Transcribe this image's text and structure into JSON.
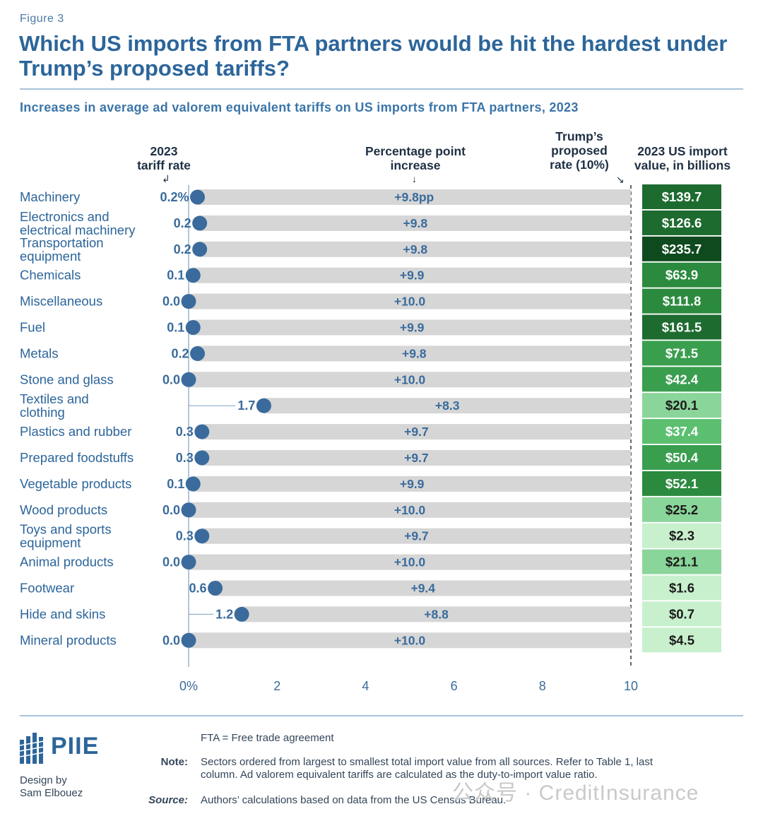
{
  "figure_label": "Figure 3",
  "title": "Which US imports from FTA partners would be hit the hardest under Trump’s proposed tariffs?",
  "subtitle": "Increases in average ad valorem equivalent tariffs on US imports from FTA partners, 2023",
  "headers": {
    "tariff_rate_line1": "2023",
    "tariff_rate_line2": "tariff rate",
    "increase_line1": "Percentage point",
    "increase_line2": "increase",
    "proposed_line1": "Trump’s",
    "proposed_line2": "proposed",
    "proposed_line3": "rate (10%)",
    "import_line1": "2023 US import",
    "import_line2": "value, in billions"
  },
  "colors": {
    "bar": "#d6d6d6",
    "dot": "#3a6b9c",
    "label": "#2c659a",
    "import_scale": [
      "#c8f0cd",
      "#8ad59a",
      "#5cbf70",
      "#3a9e4f",
      "#2b8a3e",
      "#1e6b30",
      "#0f4a1e"
    ]
  },
  "chart_data": {
    "type": "bar",
    "x_axis": {
      "ticks": [
        "0%",
        "2",
        "4",
        "6",
        "8",
        "10"
      ],
      "range": [
        0,
        10
      ]
    },
    "proposed_rate": 10,
    "categories": [
      {
        "name": "Machinery",
        "lines": [
          "Machinery"
        ],
        "rate": 0.2,
        "rate_label": "0.2%",
        "increase_label": "+9.8pp",
        "import_label": "$139.7",
        "import_value": 139.7,
        "shade": 5
      },
      {
        "name": "Electronics and electrical machinery",
        "lines": [
          "Electronics and",
          "electrical machinery"
        ],
        "rate": 0.25,
        "rate_label": "0.2",
        "increase_label": "+9.8",
        "import_label": "$126.6",
        "import_value": 126.6,
        "shade": 5
      },
      {
        "name": "Transportation equipment",
        "lines": [
          "Transportation",
          "equipment"
        ],
        "rate": 0.25,
        "rate_label": "0.2",
        "increase_label": "+9.8",
        "import_label": "$235.7",
        "import_value": 235.7,
        "shade": 6
      },
      {
        "name": "Chemicals",
        "lines": [
          "Chemicals"
        ],
        "rate": 0.1,
        "rate_label": "0.1",
        "increase_label": "+9.9",
        "import_label": "$63.9",
        "import_value": 63.9,
        "shade": 4
      },
      {
        "name": "Miscellaneous",
        "lines": [
          "Miscellaneous"
        ],
        "rate": 0.0,
        "rate_label": "0.0",
        "increase_label": "+10.0",
        "import_label": "$111.8",
        "import_value": 111.8,
        "shade": 4
      },
      {
        "name": "Fuel",
        "lines": [
          "Fuel"
        ],
        "rate": 0.1,
        "rate_label": "0.1",
        "increase_label": "+9.9",
        "import_label": "$161.5",
        "import_value": 161.5,
        "shade": 5
      },
      {
        "name": "Metals",
        "lines": [
          "Metals"
        ],
        "rate": 0.2,
        "rate_label": "0.2",
        "increase_label": "+9.8",
        "import_label": "$71.5",
        "import_value": 71.5,
        "shade": 3
      },
      {
        "name": "Stone and glass",
        "lines": [
          "Stone and glass"
        ],
        "rate": 0.0,
        "rate_label": "0.0",
        "increase_label": "+10.0",
        "import_label": "$42.4",
        "import_value": 42.4,
        "shade": 3
      },
      {
        "name": "Textiles and clothing",
        "lines": [
          "Textiles and",
          "clothing"
        ],
        "rate": 1.7,
        "rate_label": "1.7",
        "increase_label": "+8.3",
        "import_label": "$20.1",
        "import_value": 20.1,
        "shade": 1
      },
      {
        "name": "Plastics and rubber",
        "lines": [
          "Plastics and rubber"
        ],
        "rate": 0.3,
        "rate_label": "0.3",
        "increase_label": "+9.7",
        "import_label": "$37.4",
        "import_value": 37.4,
        "shade": 2
      },
      {
        "name": "Prepared foodstuffs",
        "lines": [
          "Prepared foodstuffs"
        ],
        "rate": 0.3,
        "rate_label": "0.3",
        "increase_label": "+9.7",
        "import_label": "$50.4",
        "import_value": 50.4,
        "shade": 3
      },
      {
        "name": "Vegetable products",
        "lines": [
          "Vegetable products"
        ],
        "rate": 0.1,
        "rate_label": "0.1",
        "increase_label": "+9.9",
        "import_label": "$52.1",
        "import_value": 52.1,
        "shade": 4
      },
      {
        "name": "Wood products",
        "lines": [
          "Wood products"
        ],
        "rate": 0.0,
        "rate_label": "0.0",
        "increase_label": "+10.0",
        "import_label": "$25.2",
        "import_value": 25.2,
        "shade": 1
      },
      {
        "name": "Toys and sports equipment",
        "lines": [
          "Toys and sports",
          "equipment"
        ],
        "rate": 0.3,
        "rate_label": "0.3",
        "increase_label": "+9.7",
        "import_label": "$2.3",
        "import_value": 2.3,
        "shade": 0
      },
      {
        "name": "Animal products",
        "lines": [
          "Animal products"
        ],
        "rate": 0.0,
        "rate_label": "0.0",
        "increase_label": "+10.0",
        "import_label": "$21.1",
        "import_value": 21.1,
        "shade": 1
      },
      {
        "name": "Footwear",
        "lines": [
          "Footwear"
        ],
        "rate": 0.6,
        "rate_label": "0.6",
        "increase_label": "+9.4",
        "import_label": "$1.6",
        "import_value": 1.6,
        "shade": 0
      },
      {
        "name": "Hide and skins",
        "lines": [
          "Hide and skins"
        ],
        "rate": 1.2,
        "rate_label": "1.2",
        "increase_label": "+8.8",
        "import_label": "$0.7",
        "import_value": 0.7,
        "shade": 0
      },
      {
        "name": "Mineral products",
        "lines": [
          "Mineral products"
        ],
        "rate": 0.0,
        "rate_label": "0.0",
        "increase_label": "+10.0",
        "import_label": "$4.5",
        "import_value": 4.5,
        "shade": 0
      }
    ]
  },
  "footer": {
    "logo": "PIIE",
    "designer_line1": "Design by",
    "designer_line2": "Sam Elbouez",
    "fta_def": "FTA = Free trade agreement",
    "note_label": "Note:",
    "note_line1": "Sectors ordered from largest to smallest total import value from all sources. Refer to Table 1, last",
    "note_line2": "column. Ad valorem equivalent tariffs are calculated as the duty-to-import value ratio.",
    "source_label": "Source:",
    "source_text": "Authors’ calculations based on data from the US Census Bureau.",
    "watermark": "公众号 · CreditInsurance"
  }
}
